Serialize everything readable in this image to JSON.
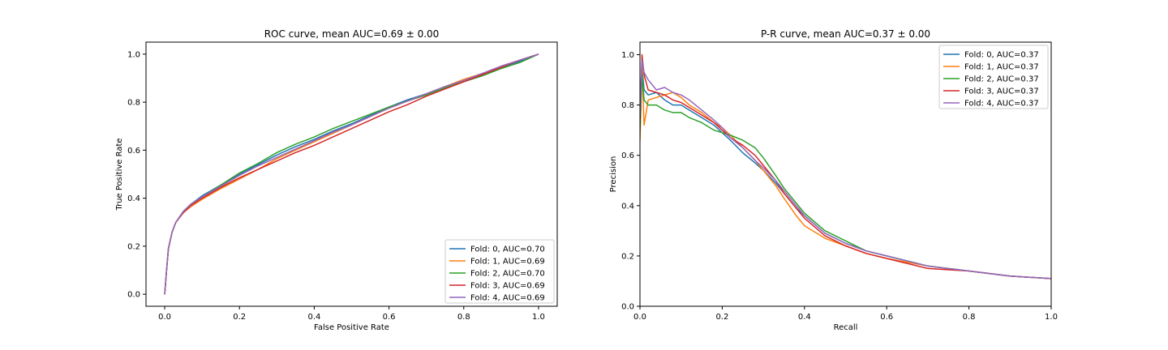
{
  "figure": {
    "panels": [
      "roc",
      "pr"
    ]
  },
  "colors": {
    "fold0": "#1f77b4",
    "fold1": "#ff7f0e",
    "fold2": "#2ca02c",
    "fold3": "#d62728",
    "fold4": "#9467bd",
    "axes": "#000000",
    "background": "#ffffff"
  },
  "chart_data": [
    {
      "id": "roc",
      "type": "line",
      "title": "ROC curve, mean AUC=0.69 ± 0.00",
      "xlabel": "False Positive Rate",
      "ylabel": "True Positive Rate",
      "xlim": [
        -0.05,
        1.05
      ],
      "ylim": [
        -0.05,
        1.05
      ],
      "xticks": [
        0.0,
        0.2,
        0.4,
        0.6,
        0.8,
        1.0
      ],
      "yticks": [
        0.0,
        0.2,
        0.4,
        0.6,
        0.8,
        1.0
      ],
      "tick_labels_x": [
        "0.0",
        "0.2",
        "0.4",
        "0.6",
        "0.8",
        "1.0"
      ],
      "tick_labels_y": [
        "0.0",
        "0.2",
        "0.4",
        "0.6",
        "0.8",
        "1.0"
      ],
      "grid": false,
      "legend": "lower-right",
      "series": [
        {
          "name": "Fold: 0, AUC=0.70",
          "x": [
            0,
            0.005,
            0.01,
            0.02,
            0.03,
            0.05,
            0.07,
            0.1,
            0.15,
            0.2,
            0.25,
            0.3,
            0.35,
            0.4,
            0.45,
            0.5,
            0.55,
            0.6,
            0.65,
            0.7,
            0.75,
            0.8,
            0.85,
            0.9,
            0.95,
            1.0
          ],
          "y": [
            0,
            0.1,
            0.19,
            0.26,
            0.3,
            0.345,
            0.375,
            0.41,
            0.455,
            0.5,
            0.54,
            0.58,
            0.615,
            0.645,
            0.68,
            0.71,
            0.745,
            0.78,
            0.81,
            0.835,
            0.865,
            0.89,
            0.915,
            0.945,
            0.97,
            1.0
          ]
        },
        {
          "name": "Fold: 1, AUC=0.69",
          "x": [
            0,
            0.005,
            0.01,
            0.02,
            0.03,
            0.05,
            0.07,
            0.1,
            0.15,
            0.2,
            0.25,
            0.3,
            0.35,
            0.4,
            0.45,
            0.5,
            0.55,
            0.6,
            0.65,
            0.7,
            0.75,
            0.8,
            0.85,
            0.9,
            0.95,
            1.0
          ],
          "y": [
            0,
            0.1,
            0.19,
            0.26,
            0.3,
            0.34,
            0.365,
            0.395,
            0.44,
            0.48,
            0.52,
            0.565,
            0.6,
            0.635,
            0.67,
            0.705,
            0.74,
            0.775,
            0.805,
            0.835,
            0.865,
            0.895,
            0.92,
            0.95,
            0.975,
            1.0
          ]
        },
        {
          "name": "Fold: 2, AUC=0.70",
          "x": [
            0,
            0.005,
            0.01,
            0.02,
            0.03,
            0.05,
            0.07,
            0.1,
            0.15,
            0.2,
            0.25,
            0.3,
            0.35,
            0.4,
            0.45,
            0.5,
            0.55,
            0.6,
            0.65,
            0.7,
            0.75,
            0.8,
            0.85,
            0.9,
            0.95,
            1.0
          ],
          "y": [
            0,
            0.1,
            0.19,
            0.26,
            0.3,
            0.345,
            0.375,
            0.405,
            0.455,
            0.505,
            0.545,
            0.59,
            0.625,
            0.655,
            0.69,
            0.72,
            0.75,
            0.78,
            0.805,
            0.83,
            0.86,
            0.885,
            0.91,
            0.94,
            0.965,
            1.0
          ]
        },
        {
          "name": "Fold: 3, AUC=0.69",
          "x": [
            0,
            0.005,
            0.01,
            0.02,
            0.03,
            0.05,
            0.07,
            0.1,
            0.15,
            0.2,
            0.25,
            0.3,
            0.35,
            0.4,
            0.45,
            0.5,
            0.55,
            0.6,
            0.65,
            0.7,
            0.75,
            0.8,
            0.85,
            0.9,
            0.95,
            1.0
          ],
          "y": [
            0,
            0.1,
            0.19,
            0.26,
            0.3,
            0.34,
            0.37,
            0.4,
            0.445,
            0.485,
            0.52,
            0.555,
            0.59,
            0.62,
            0.655,
            0.69,
            0.725,
            0.76,
            0.79,
            0.825,
            0.855,
            0.885,
            0.915,
            0.945,
            0.975,
            1.0
          ]
        },
        {
          "name": "Fold: 4, AUC=0.69",
          "x": [
            0,
            0.005,
            0.01,
            0.02,
            0.03,
            0.05,
            0.07,
            0.1,
            0.15,
            0.2,
            0.25,
            0.3,
            0.35,
            0.4,
            0.45,
            0.5,
            0.55,
            0.6,
            0.65,
            0.7,
            0.75,
            0.8,
            0.85,
            0.9,
            0.95,
            1.0
          ],
          "y": [
            0,
            0.1,
            0.19,
            0.26,
            0.3,
            0.345,
            0.375,
            0.405,
            0.45,
            0.495,
            0.535,
            0.57,
            0.605,
            0.64,
            0.675,
            0.705,
            0.74,
            0.775,
            0.805,
            0.835,
            0.865,
            0.89,
            0.92,
            0.95,
            0.975,
            1.0
          ]
        }
      ]
    },
    {
      "id": "pr",
      "type": "line",
      "title": "P-R curve, mean AUC=0.37 ± 0.00",
      "xlabel": "Recall",
      "ylabel": "Precision",
      "xlim": [
        0.0,
        1.0
      ],
      "ylim": [
        0.0,
        1.05
      ],
      "xticks": [
        0.0,
        0.2,
        0.4,
        0.6,
        0.8,
        1.0
      ],
      "yticks": [
        0.0,
        0.2,
        0.4,
        0.6,
        0.8,
        1.0
      ],
      "tick_labels_x": [
        "0.0",
        "0.2",
        "0.4",
        "0.6",
        "0.8",
        "1.0"
      ],
      "tick_labels_y": [
        "0.0",
        "0.2",
        "0.4",
        "0.6",
        "0.8",
        "1.0"
      ],
      "grid": false,
      "legend": "upper-right",
      "series": [
        {
          "name": "Fold: 0, AUC=0.37",
          "x": [
            0.0,
            0.005,
            0.01,
            0.02,
            0.04,
            0.06,
            0.08,
            0.1,
            0.12,
            0.15,
            0.18,
            0.2,
            0.22,
            0.25,
            0.28,
            0.3,
            0.33,
            0.35,
            0.38,
            0.4,
            0.45,
            0.5,
            0.55,
            0.6,
            0.7,
            0.8,
            0.9,
            1.0
          ],
          "y": [
            0.72,
            0.95,
            0.86,
            0.84,
            0.85,
            0.82,
            0.8,
            0.8,
            0.78,
            0.75,
            0.72,
            0.69,
            0.66,
            0.61,
            0.57,
            0.54,
            0.49,
            0.45,
            0.39,
            0.36,
            0.29,
            0.25,
            0.22,
            0.2,
            0.16,
            0.14,
            0.12,
            0.11
          ]
        },
        {
          "name": "Fold: 1, AUC=0.37",
          "x": [
            0.0,
            0.005,
            0.01,
            0.02,
            0.04,
            0.06,
            0.08,
            0.1,
            0.12,
            0.15,
            0.18,
            0.2,
            0.22,
            0.25,
            0.28,
            0.3,
            0.33,
            0.35,
            0.38,
            0.4,
            0.45,
            0.5,
            0.55,
            0.6,
            0.7,
            0.8,
            0.9,
            1.0
          ],
          "y": [
            0.66,
            0.95,
            0.72,
            0.82,
            0.83,
            0.84,
            0.85,
            0.83,
            0.8,
            0.77,
            0.73,
            0.71,
            0.68,
            0.63,
            0.58,
            0.54,
            0.48,
            0.43,
            0.36,
            0.32,
            0.27,
            0.24,
            0.21,
            0.19,
            0.16,
            0.14,
            0.12,
            0.11
          ]
        },
        {
          "name": "Fold: 2, AUC=0.37",
          "x": [
            0.0,
            0.005,
            0.01,
            0.02,
            0.04,
            0.06,
            0.08,
            0.1,
            0.12,
            0.15,
            0.18,
            0.2,
            0.22,
            0.25,
            0.28,
            0.3,
            0.33,
            0.35,
            0.38,
            0.4,
            0.45,
            0.5,
            0.55,
            0.6,
            0.7,
            0.8,
            0.9,
            1.0
          ],
          "y": [
            0.7,
            0.92,
            0.82,
            0.8,
            0.8,
            0.78,
            0.77,
            0.77,
            0.75,
            0.73,
            0.7,
            0.69,
            0.68,
            0.66,
            0.63,
            0.59,
            0.52,
            0.47,
            0.41,
            0.37,
            0.3,
            0.26,
            0.22,
            0.2,
            0.16,
            0.14,
            0.12,
            0.11
          ]
        },
        {
          "name": "Fold: 3, AUC=0.37",
          "x": [
            0.0,
            0.005,
            0.01,
            0.02,
            0.04,
            0.06,
            0.08,
            0.1,
            0.12,
            0.15,
            0.18,
            0.2,
            0.22,
            0.25,
            0.28,
            0.3,
            0.33,
            0.35,
            0.38,
            0.4,
            0.45,
            0.5,
            0.55,
            0.6,
            0.7,
            0.8,
            0.9,
            1.0
          ],
          "y": [
            0.74,
            1.0,
            0.92,
            0.86,
            0.85,
            0.84,
            0.82,
            0.81,
            0.79,
            0.76,
            0.73,
            0.7,
            0.67,
            0.64,
            0.6,
            0.56,
            0.5,
            0.45,
            0.39,
            0.35,
            0.28,
            0.24,
            0.21,
            0.19,
            0.15,
            0.14,
            0.12,
            0.11
          ]
        },
        {
          "name": "Fold: 4, AUC=0.37",
          "x": [
            0.0,
            0.005,
            0.01,
            0.02,
            0.04,
            0.06,
            0.08,
            0.1,
            0.12,
            0.15,
            0.18,
            0.2,
            0.22,
            0.25,
            0.28,
            0.3,
            0.33,
            0.35,
            0.38,
            0.4,
            0.45,
            0.5,
            0.55,
            0.6,
            0.7,
            0.8,
            0.9,
            1.0
          ],
          "y": [
            0.76,
            0.98,
            0.93,
            0.9,
            0.86,
            0.87,
            0.85,
            0.84,
            0.82,
            0.78,
            0.74,
            0.71,
            0.67,
            0.63,
            0.58,
            0.55,
            0.5,
            0.46,
            0.4,
            0.36,
            0.29,
            0.25,
            0.22,
            0.2,
            0.16,
            0.14,
            0.12,
            0.11
          ]
        }
      ]
    }
  ]
}
